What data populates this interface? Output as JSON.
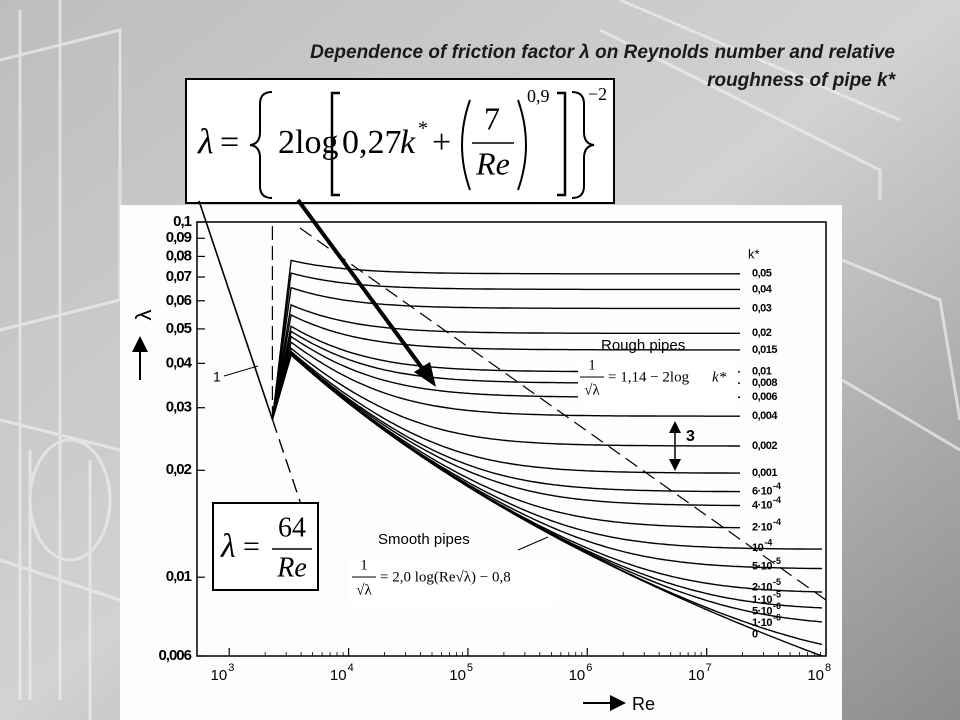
{
  "title": [
    "Dependence of friction factor λ on Reynolds number and relative",
    "roughness of pipe k*"
  ],
  "formula_box": {
    "lhs": "λ",
    "eq": "=",
    "log": "2log",
    "a": "0,27",
    "k": "k",
    "star": "*",
    "plus": "+",
    "num": "7",
    "den": "Re",
    "inner_exp": "0,9",
    "outer_exp": "−2"
  },
  "chart": {
    "y_axis_label": "λ",
    "x_axis_label": "Re",
    "y_ticks": [
      "0,1",
      "0,09",
      "0,08",
      "0,07",
      "0,06",
      "0,05",
      "0,04",
      "0,03",
      "0,02",
      "0,01",
      "0,006"
    ],
    "x_ticks": [
      {
        "base": "10",
        "exp": "3"
      },
      {
        "base": "10",
        "exp": "4"
      },
      {
        "base": "10",
        "exp": "5"
      },
      {
        "base": "10",
        "exp": "6"
      },
      {
        "base": "10",
        "exp": "7"
      },
      {
        "base": "10",
        "exp": "8"
      }
    ],
    "k_heading": "k*",
    "k_labels": [
      {
        "base": "0,05"
      },
      {
        "base": "0,04"
      },
      {
        "base": "0,03"
      },
      {
        "base": "0,02"
      },
      {
        "base": "0,015"
      },
      {
        "base": "0,01"
      },
      {
        "base": "0,008"
      },
      {
        "base": "0,006"
      },
      {
        "base": "0,004"
      },
      {
        "base": "0,002"
      },
      {
        "base": "0,001"
      },
      {
        "base": "6·10",
        "exp": "-4"
      },
      {
        "base": "4·10",
        "exp": "-4"
      },
      {
        "base": "2·10",
        "exp": "-4"
      },
      {
        "base": "10",
        "exp": "-4"
      },
      {
        "base": "5·10",
        "exp": "-5"
      },
      {
        "base": "2·10",
        "exp": "-5"
      },
      {
        "base": "1·10",
        "exp": "-5"
      },
      {
        "base": "5·10",
        "exp": "-6"
      },
      {
        "base": "1·10",
        "exp": "-6"
      },
      {
        "base": "0"
      }
    ],
    "labels": {
      "laminar_curve": "1",
      "rough": "Rough pipes",
      "smooth": "Smooth pipes",
      "band": "3"
    },
    "rough_formula": {
      "num": "1",
      "den": "√λ",
      "rhs": "= 1,14 − 2log",
      "k": "k*"
    },
    "smooth_formula": {
      "num": "1",
      "den": "√λ",
      "rhs": "= 2,0 log(Re√λ) − 0,8"
    },
    "laminar_formula": {
      "lhs": "λ",
      "eq": "=",
      "num": "64",
      "den": "Re"
    }
  }
}
